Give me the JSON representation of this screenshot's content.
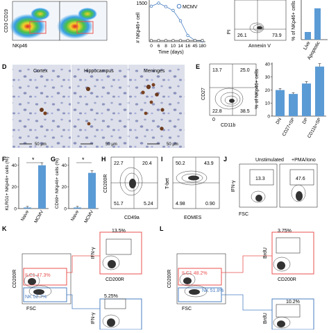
{
  "figure": {
    "topRow": {
      "flow": {
        "xlabel": "NKp46",
        "ylabel": "CD3 CD19"
      },
      "line": {
        "ytop": "1500",
        "ylabel": "# NKp46+ cell",
        "xticks": [
          "0",
          "6",
          "8",
          "10",
          "14",
          "16",
          "45",
          "180"
        ],
        "xlabel": "Time (days)",
        "legend": "MCMV",
        "chart_data": {
          "type": "line",
          "x": [
            0,
            6,
            8,
            10,
            14,
            16,
            45,
            180
          ],
          "series": [
            {
              "name": "MCMV",
              "values": [
                1700,
                1850,
                1680,
                1500,
                1000,
                300,
                60,
                40
              ]
            },
            {
              "name": "",
              "values": [
                60,
                60,
                60,
                60,
                60,
                60,
                60,
                60
              ]
            }
          ]
        }
      },
      "annexin": {
        "ylabel": "PI",
        "xlabel": "Annexin V",
        "q3": "26.1",
        "q4": "73.9"
      },
      "bar": {
        "ylabel": "% of NKp46+ cells",
        "cats": [
          "Live",
          "Apoptotic"
        ]
      }
    },
    "panelD": {
      "letter": "D",
      "titles": [
        "Cortex",
        "Hippocampus",
        "Meninges"
      ],
      "scale": "50 μm"
    },
    "panelE": {
      "letter": "E",
      "ylabel": "CD27",
      "xlabel": "CD11b",
      "zero": "0",
      "q1": "13.7",
      "q2": "25.0",
      "q3": "22.8",
      "q4": "38.5",
      "bar": {
        "ylabel": "% of NKp46+ cells",
        "yticks": [
          "0",
          "10",
          "20",
          "30",
          "40"
        ],
        "chart_data": {
          "type": "bar",
          "categories": [
            "DN",
            "CD27+SP",
            "DP",
            "CD11b+SP"
          ],
          "values": [
            20,
            17,
            25,
            38
          ],
          "ylim": [
            0,
            40
          ]
        }
      }
    },
    "panelF": {
      "letter": "F",
      "ylabel": "KLRG1+ NKp46+ cells (%)",
      "yticks": [
        "0",
        "20",
        "40"
      ],
      "star": "*",
      "chart_data": {
        "type": "bar",
        "categories": [
          "Naive",
          "MCMV"
        ],
        "values": [
          1,
          40
        ],
        "ylim": [
          0,
          45
        ]
      }
    },
    "panelG": {
      "letter": "G",
      "ylabel": "CD69+ NKp46+ cells (%)",
      "yticks": [
        "0",
        "20",
        "40"
      ],
      "star": "*",
      "chart_data": {
        "type": "bar",
        "categories": [
          "Naive",
          "MCMV"
        ],
        "values": [
          1,
          33
        ],
        "ylim": [
          0,
          45
        ]
      }
    },
    "panelH": {
      "letter": "H",
      "ylabel": "CD200R",
      "xlabel": "CD49a",
      "q1": "22.7",
      "q2": "20.4",
      "q3": "51.7",
      "q4": "5.24"
    },
    "panelI": {
      "letter": "I",
      "ylabel": "T-bet",
      "xlabel": "EOMES",
      "q1": "50.2",
      "q2": "43.9",
      "q3": "4.98",
      "q4": "0.90"
    },
    "panelJ": {
      "letter": "J",
      "ylabel": "IFN-γ",
      "xlabel": "FSC",
      "titles": [
        "Unstimulated",
        "+PMA/Iono"
      ],
      "values": [
        "13.3",
        "47.6"
      ]
    },
    "panelK": {
      "letter": "K",
      "ylabel": "CD200R",
      "xlabel": "FSC",
      "ilc1": "ILC1 47.3%",
      "nk": "NK 52.7%",
      "upper": {
        "ylabel": "IFN-γ",
        "xlabel": "CD200R",
        "value": "13.5%"
      },
      "lower": {
        "ylabel": "IFN-γ",
        "value": "5.25%"
      }
    },
    "panelL": {
      "letter": "L",
      "ylabel": "CD200R",
      "xlabel": "FSC",
      "ilc1": "ILC1 48.2%",
      "nk": "NK 51.8%",
      "upper": {
        "ylabel": "BrdU",
        "xlabel": "CD200R",
        "value": "3.75%"
      },
      "lower": {
        "ylabel": "BrdU",
        "value": "10.2%"
      }
    },
    "colors": {
      "red": "#e8514f",
      "blue": "#4a7fc1",
      "bar": "#5b9bd5"
    }
  }
}
